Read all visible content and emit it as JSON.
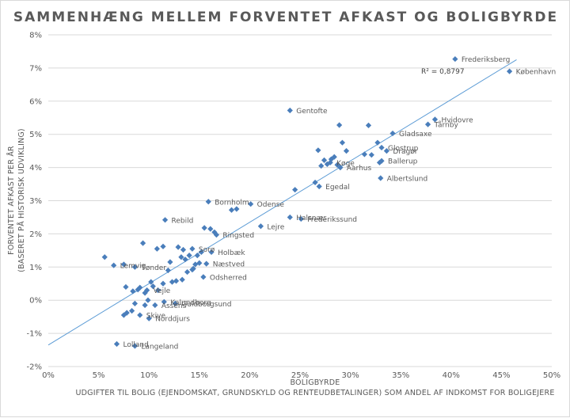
{
  "chart_data": {
    "type": "scatter",
    "title": "SAMMENHÆNG MELLEM FORVENTET AFKAST OG BOLIGBYRDE",
    "xlabel": "BOLIGBYRDE",
    "xlabel2": "UDGIFTER TIL BOLIG (EJENDOMSKAT, GRUNDSKYLD OG RENTEUDBETALINGER) SOM ANDEL AF INDKOMST FOR BOLIGEJERE",
    "ylabel": "FORVENTET AFKAST PER ÅR",
    "ylabel2": "(BASERET PÅ HISTORISK UDVIKLING)",
    "xlim": [
      0,
      50
    ],
    "ylim": [
      -2,
      8
    ],
    "xticks": [
      0,
      5,
      10,
      15,
      20,
      25,
      30,
      35,
      40,
      45,
      50
    ],
    "yticks": [
      -2,
      -1,
      0,
      1,
      2,
      3,
      4,
      5,
      6,
      7,
      8
    ],
    "xtick_labels": [
      "0%",
      "5%",
      "10%",
      "15%",
      "20%",
      "25%",
      "30%",
      "35%",
      "40%",
      "45%",
      "50%"
    ],
    "ytick_labels": [
      "-2%",
      "-1%",
      "0%",
      "1%",
      "2%",
      "3%",
      "4%",
      "5%",
      "6%",
      "7%",
      "8%"
    ],
    "grid": "horizontal",
    "marker_color": "#4a7ebb",
    "trendline_color": "#5b9bd5",
    "r_squared": "R² = 0,8797",
    "trendline": {
      "x": [
        0,
        46.5
      ],
      "y": [
        -1.35,
        7.25
      ]
    },
    "points": [
      {
        "x": 40.4,
        "y": 7.27,
        "label": "Frederiksberg"
      },
      {
        "x": 45.8,
        "y": 6.9,
        "label": "København"
      },
      {
        "x": 24.0,
        "y": 5.72,
        "label": "Gentofte"
      },
      {
        "x": 38.4,
        "y": 5.45,
        "label": "Hvidovre"
      },
      {
        "x": 37.7,
        "y": 5.3,
        "label": "Tårnby"
      },
      {
        "x": 34.2,
        "y": 5.03,
        "label": "Gladsaxe"
      },
      {
        "x": 33.1,
        "y": 4.6,
        "label": "Glostrup"
      },
      {
        "x": 33.6,
        "y": 4.5,
        "label": "Dragør"
      },
      {
        "x": 33.1,
        "y": 4.2,
        "label": "Ballerup"
      },
      {
        "x": 28.0,
        "y": 4.15,
        "label": "Køge"
      },
      {
        "x": 29.0,
        "y": 4.0,
        "label": "Aarhus"
      },
      {
        "x": 33.0,
        "y": 3.68,
        "label": "Albertslund"
      },
      {
        "x": 26.9,
        "y": 3.43,
        "label": "Egedal"
      },
      {
        "x": 15.9,
        "y": 2.97,
        "label": "Bornholm"
      },
      {
        "x": 20.1,
        "y": 2.9,
        "label": "Odense"
      },
      {
        "x": 24.0,
        "y": 2.5,
        "label": "Halsnæs"
      },
      {
        "x": 25.1,
        "y": 2.45,
        "label": "Frederikssund"
      },
      {
        "x": 21.1,
        "y": 2.23,
        "label": "Lejre"
      },
      {
        "x": 11.6,
        "y": 2.42,
        "label": "Rebild"
      },
      {
        "x": 16.7,
        "y": 1.97,
        "label": "Ringsted"
      },
      {
        "x": 14.3,
        "y": 1.55,
        "label": "Sorø"
      },
      {
        "x": 16.2,
        "y": 1.45,
        "label": "Holbæk"
      },
      {
        "x": 15.7,
        "y": 1.1,
        "label": "Næstved"
      },
      {
        "x": 8.6,
        "y": 1.0,
        "label": "Tønder"
      },
      {
        "x": 6.5,
        "y": 1.05,
        "label": "Lemvig"
      },
      {
        "x": 15.4,
        "y": 0.7,
        "label": "Odsherred"
      },
      {
        "x": 9.8,
        "y": 0.3,
        "label": "Vejle"
      },
      {
        "x": 11.5,
        "y": -0.05,
        "label": "Kalundborg"
      },
      {
        "x": 12.6,
        "y": -0.1,
        "label": "Guldborgsund"
      },
      {
        "x": 10.6,
        "y": -0.15,
        "label": "Assens"
      },
      {
        "x": 9.1,
        "y": -0.45,
        "label": "Skive"
      },
      {
        "x": 10.0,
        "y": -0.55,
        "label": "Norddjurs"
      },
      {
        "x": 6.8,
        "y": -1.32,
        "label": "Lolland"
      },
      {
        "x": 8.6,
        "y": -1.38,
        "label": "Langeland"
      },
      {
        "x": 5.6,
        "y": 1.3
      },
      {
        "x": 9.4,
        "y": 1.72
      },
      {
        "x": 10.8,
        "y": 1.55
      },
      {
        "x": 11.4,
        "y": 1.62
      },
      {
        "x": 7.5,
        "y": 1.08
      },
      {
        "x": 7.7,
        "y": 0.4
      },
      {
        "x": 8.4,
        "y": 0.27
      },
      {
        "x": 8.9,
        "y": 0.32
      },
      {
        "x": 9.1,
        "y": 0.38
      },
      {
        "x": 9.6,
        "y": 0.22
      },
      {
        "x": 10.2,
        "y": 0.55
      },
      {
        "x": 10.4,
        "y": 0.42
      },
      {
        "x": 10.9,
        "y": 0.3
      },
      {
        "x": 11.4,
        "y": 0.5
      },
      {
        "x": 11.9,
        "y": 0.9
      },
      {
        "x": 12.1,
        "y": 1.15
      },
      {
        "x": 12.3,
        "y": 0.55
      },
      {
        "x": 12.7,
        "y": 0.58
      },
      {
        "x": 12.9,
        "y": 1.6
      },
      {
        "x": 13.2,
        "y": 1.3
      },
      {
        "x": 13.4,
        "y": 1.52
      },
      {
        "x": 13.6,
        "y": 1.23
      },
      {
        "x": 13.8,
        "y": 0.85
      },
      {
        "x": 14.0,
        "y": 1.35
      },
      {
        "x": 14.3,
        "y": 0.92
      },
      {
        "x": 14.6,
        "y": 1.08
      },
      {
        "x": 14.8,
        "y": 1.35
      },
      {
        "x": 15.0,
        "y": 1.12
      },
      {
        "x": 15.2,
        "y": 1.45
      },
      {
        "x": 15.5,
        "y": 2.18
      },
      {
        "x": 16.1,
        "y": 2.15
      },
      {
        "x": 16.5,
        "y": 2.05
      },
      {
        "x": 13.3,
        "y": 0.62
      },
      {
        "x": 14.4,
        "y": 0.95
      },
      {
        "x": 8.3,
        "y": -0.32
      },
      {
        "x": 8.6,
        "y": -0.1
      },
      {
        "x": 9.6,
        "y": -0.15
      },
      {
        "x": 9.9,
        "y": 0.0
      },
      {
        "x": 7.8,
        "y": -0.38
      },
      {
        "x": 7.5,
        "y": -0.45
      },
      {
        "x": 18.2,
        "y": 2.72
      },
      {
        "x": 18.7,
        "y": 2.75
      },
      {
        "x": 24.5,
        "y": 3.33
      },
      {
        "x": 26.5,
        "y": 3.55
      },
      {
        "x": 26.8,
        "y": 4.52
      },
      {
        "x": 27.1,
        "y": 4.05
      },
      {
        "x": 27.4,
        "y": 4.22
      },
      {
        "x": 27.7,
        "y": 4.1
      },
      {
        "x": 28.1,
        "y": 4.25
      },
      {
        "x": 28.4,
        "y": 4.32
      },
      {
        "x": 28.7,
        "y": 4.08
      },
      {
        "x": 28.9,
        "y": 5.28
      },
      {
        "x": 29.2,
        "y": 4.75
      },
      {
        "x": 29.6,
        "y": 4.5
      },
      {
        "x": 31.4,
        "y": 4.4
      },
      {
        "x": 31.8,
        "y": 5.27
      },
      {
        "x": 32.1,
        "y": 4.38
      },
      {
        "x": 32.7,
        "y": 4.75
      },
      {
        "x": 32.9,
        "y": 4.15
      }
    ]
  }
}
